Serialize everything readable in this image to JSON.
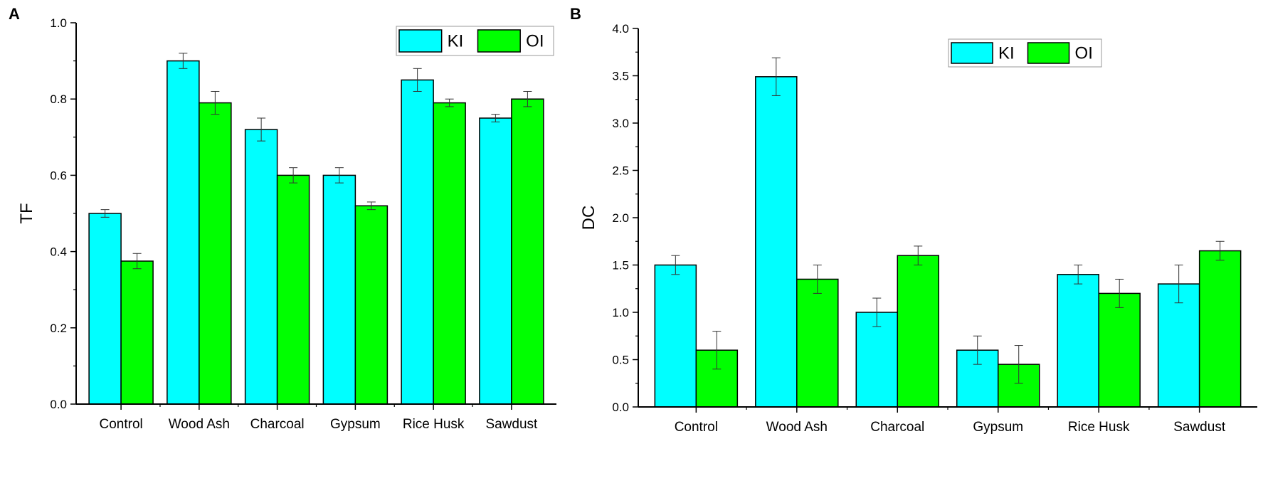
{
  "colors": {
    "KI": "#00ffff",
    "OI": "#00ff00",
    "axis": "#000000",
    "error": "#333333"
  },
  "chart_data": [
    {
      "type": "bar",
      "panel_label": "A",
      "title": "",
      "xlabel": "",
      "ylabel": "TF",
      "ylim": [
        0,
        1.0
      ],
      "yticks": [
        0.0,
        0.2,
        0.4,
        0.6,
        0.8,
        1.0
      ],
      "ytick_labels": [
        "0.0",
        "0.2",
        "0.4",
        "0.6",
        "0.8",
        "1.0"
      ],
      "grid": false,
      "legend_position": "top-right",
      "categories": [
        "Control",
        "Wood Ash",
        "Charcoal",
        "Gypsum",
        "Rice Husk",
        "Sawdust"
      ],
      "series": [
        {
          "name": "KI",
          "values": [
            0.5,
            0.9,
            0.72,
            0.6,
            0.85,
            0.75
          ],
          "errors": [
            0.01,
            0.02,
            0.03,
            0.02,
            0.03,
            0.01
          ]
        },
        {
          "name": "OI",
          "values": [
            0.375,
            0.79,
            0.6,
            0.52,
            0.79,
            0.8
          ],
          "errors": [
            0.02,
            0.03,
            0.02,
            0.01,
            0.01,
            0.02
          ]
        }
      ]
    },
    {
      "type": "bar",
      "panel_label": "B",
      "title": "",
      "xlabel": "",
      "ylabel": "DC",
      "ylim": [
        0,
        4.0
      ],
      "yticks": [
        0.0,
        0.5,
        1.0,
        1.5,
        2.0,
        2.5,
        3.0,
        3.5,
        4.0
      ],
      "ytick_labels": [
        "0.0",
        "0.5",
        "1.0",
        "1.5",
        "2.0",
        "2.5",
        "3.0",
        "3.5",
        "4.0"
      ],
      "grid": false,
      "legend_position": "top-right",
      "categories": [
        "Control",
        "Wood Ash",
        "Charcoal",
        "Gypsum",
        "Rice Husk",
        "Sawdust"
      ],
      "series": [
        {
          "name": "KI",
          "values": [
            1.5,
            3.49,
            1.0,
            0.6,
            1.4,
            1.3
          ],
          "errors": [
            0.1,
            0.2,
            0.15,
            0.15,
            0.1,
            0.2
          ]
        },
        {
          "name": "OI",
          "values": [
            0.6,
            1.35,
            1.6,
            0.45,
            1.2,
            1.65
          ],
          "errors": [
            0.2,
            0.15,
            0.1,
            0.2,
            0.15,
            0.1
          ]
        }
      ]
    }
  ]
}
